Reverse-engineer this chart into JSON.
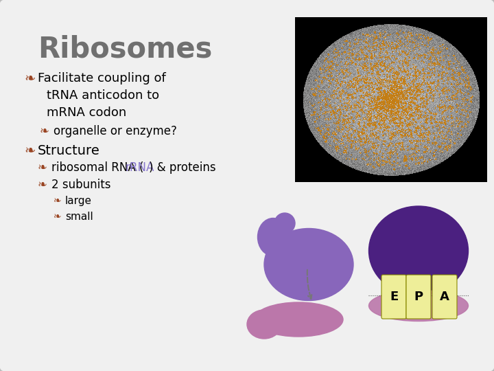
{
  "bg_color": "#f0f0f0",
  "border_color": "#bbbbbb",
  "title": "Ribosomes",
  "title_color": "#707070",
  "title_fontsize": 30,
  "bullet_color": "#994422",
  "bullet_symbol": "ß",
  "rrna_highlight_color": "#8877cc",
  "purple_dark": "#4B2080",
  "purple_mid": "#6644AA",
  "purple_light": "#8866BB",
  "pink_light": "#BB77AA",
  "yellow_label": "#EEEE99",
  "epa_labels": [
    "E",
    "P",
    "A"
  ],
  "line_color": "#555555"
}
